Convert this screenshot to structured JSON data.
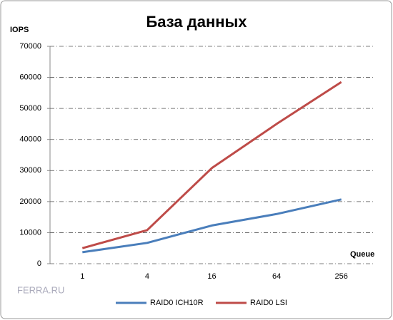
{
  "chart_data": {
    "type": "line",
    "title": "База данных",
    "y_label": "IOPS",
    "x_label": "Queue",
    "watermark": "FERRA.RU",
    "categories": [
      "1",
      "4",
      "16",
      "64",
      "256"
    ],
    "series": [
      {
        "name": "RAID0 ICH10R",
        "color": "#4a7ebb",
        "values": [
          3700,
          6700,
          12300,
          16000,
          20700
        ]
      },
      {
        "name": "RAID0 LSI",
        "color": "#be4b48",
        "values": [
          5000,
          10800,
          30800,
          45000,
          58500
        ]
      }
    ],
    "ylim": [
      0,
      70000
    ],
    "yticks": [
      0,
      10000,
      20000,
      30000,
      40000,
      50000,
      60000,
      70000
    ],
    "grid": true,
    "legend": "bottom"
  }
}
